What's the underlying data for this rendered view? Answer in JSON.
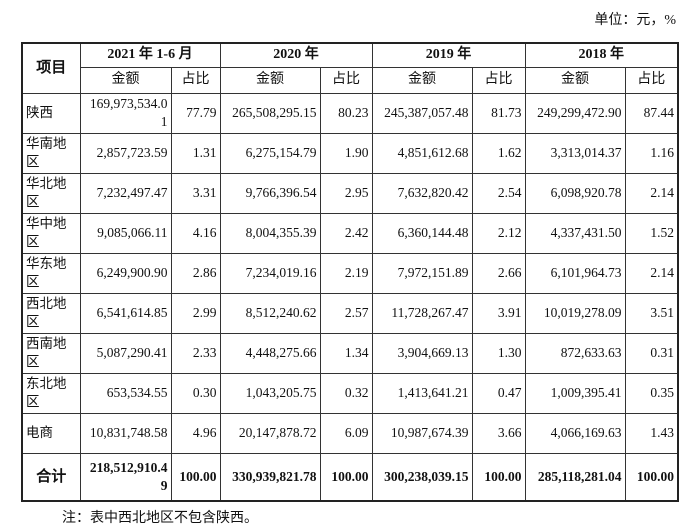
{
  "unit": "单位：元，%",
  "headers": {
    "item": "项目",
    "periods": [
      "2021 年 1-6 月",
      "2020 年",
      "2019 年",
      "2018 年"
    ],
    "amount": "金额",
    "share": "占比"
  },
  "rows": [
    {
      "name": "陕西",
      "values": [
        "169,973,534.01",
        "77.79",
        "265,508,295.15",
        "80.23",
        "245,387,057.48",
        "81.73",
        "249,299,472.90",
        "87.44"
      ]
    },
    {
      "name": "华南地区",
      "values": [
        "2,857,723.59",
        "1.31",
        "6,275,154.79",
        "1.90",
        "4,851,612.68",
        "1.62",
        "3,313,014.37",
        "1.16"
      ]
    },
    {
      "name": "华北地区",
      "values": [
        "7,232,497.47",
        "3.31",
        "9,766,396.54",
        "2.95",
        "7,632,820.42",
        "2.54",
        "6,098,920.78",
        "2.14"
      ]
    },
    {
      "name": "华中地区",
      "values": [
        "9,085,066.11",
        "4.16",
        "8,004,355.39",
        "2.42",
        "6,360,144.48",
        "2.12",
        "4,337,431.50",
        "1.52"
      ]
    },
    {
      "name": "华东地区",
      "values": [
        "6,249,900.90",
        "2.86",
        "7,234,019.16",
        "2.19",
        "7,972,151.89",
        "2.66",
        "6,101,964.73",
        "2.14"
      ]
    },
    {
      "name": "西北地区",
      "values": [
        "6,541,614.85",
        "2.99",
        "8,512,240.62",
        "2.57",
        "11,728,267.47",
        "3.91",
        "10,019,278.09",
        "3.51"
      ]
    },
    {
      "name": "西南地区",
      "values": [
        "5,087,290.41",
        "2.33",
        "4,448,275.66",
        "1.34",
        "3,904,669.13",
        "1.30",
        "872,633.63",
        "0.31"
      ]
    },
    {
      "name": "东北地区",
      "values": [
        "653,534.55",
        "0.30",
        "1,043,205.75",
        "0.32",
        "1,413,641.21",
        "0.47",
        "1,009,395.41",
        "0.35"
      ]
    },
    {
      "name": "电商",
      "values": [
        "10,831,748.58",
        "4.96",
        "20,147,878.72",
        "6.09",
        "10,987,674.39",
        "3.66",
        "4,066,169.63",
        "1.43"
      ]
    }
  ],
  "total": {
    "name": "合计",
    "values": [
      "218,512,910.49",
      "100.00",
      "330,939,821.78",
      "100.00",
      "300,238,039.15",
      "100.00",
      "285,118,281.04",
      "100.00"
    ]
  },
  "note": "注：表中西北地区不包含陕西。"
}
